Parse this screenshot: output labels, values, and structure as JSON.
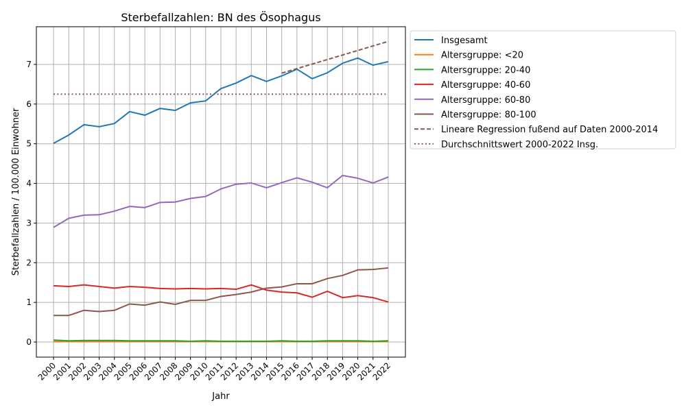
{
  "chart_data": {
    "type": "line",
    "title": "Sterbefallzahlen: BN des Ösophagus",
    "xlabel": "Jahr",
    "ylabel": "Sterbefallzahlen / 100.000 Einwohner",
    "xlim": [
      1998.87,
      2023.13
    ],
    "ylim": [
      -0.38,
      7.95
    ],
    "yticks": [
      0,
      1,
      2,
      3,
      4,
      5,
      6,
      7
    ],
    "grid": true,
    "legend_position": "outside-right-top",
    "x": [
      2000,
      2001,
      2002,
      2003,
      2004,
      2005,
      2006,
      2007,
      2008,
      2009,
      2010,
      2011,
      2012,
      2013,
      2014,
      2015,
      2016,
      2017,
      2018,
      2019,
      2020,
      2021,
      2022
    ],
    "series": [
      {
        "name": "Insgesamt",
        "color": "#1f77b4",
        "style": "solid",
        "values": [
          5.01,
          5.22,
          5.48,
          5.43,
          5.51,
          5.81,
          5.72,
          5.89,
          5.84,
          6.03,
          6.08,
          6.39,
          6.53,
          6.72,
          6.57,
          6.71,
          6.88,
          6.64,
          6.79,
          7.03,
          7.16,
          6.98,
          7.07
        ]
      },
      {
        "name": "Altersgruppe: <20",
        "color": "#ff7f0e",
        "style": "solid",
        "values": [
          0.01,
          0.01,
          0.01,
          0.01,
          0.01,
          0.01,
          0.01,
          0.01,
          0.01,
          0.01,
          0.01,
          0.01,
          0.01,
          0.01,
          0.01,
          0.01,
          0.01,
          0.01,
          0.01,
          0.01,
          0.01,
          0.01,
          0.01
        ]
      },
      {
        "name": "Altersgruppe: 20-40",
        "color": "#2ca02c",
        "style": "solid",
        "values": [
          0.05,
          0.03,
          0.04,
          0.04,
          0.04,
          0.03,
          0.03,
          0.03,
          0.03,
          0.02,
          0.03,
          0.02,
          0.02,
          0.02,
          0.02,
          0.03,
          0.02,
          0.02,
          0.03,
          0.03,
          0.03,
          0.02,
          0.03
        ]
      },
      {
        "name": "Altersgruppe: 40-60",
        "color": "#d62728",
        "style": "solid",
        "values": [
          1.42,
          1.4,
          1.44,
          1.4,
          1.36,
          1.4,
          1.38,
          1.35,
          1.34,
          1.35,
          1.34,
          1.35,
          1.33,
          1.44,
          1.31,
          1.26,
          1.24,
          1.13,
          1.28,
          1.12,
          1.17,
          1.12,
          1.01
        ]
      },
      {
        "name": "Altersgruppe: 60-80",
        "color": "#9467bd",
        "style": "solid",
        "values": [
          2.89,
          3.12,
          3.2,
          3.21,
          3.3,
          3.42,
          3.39,
          3.52,
          3.53,
          3.62,
          3.67,
          3.86,
          3.98,
          4.01,
          3.89,
          4.02,
          4.14,
          4.03,
          3.89,
          4.2,
          4.13,
          4.01,
          4.16
        ]
      },
      {
        "name": "Altersgruppe: 80-100",
        "color": "#8c564b",
        "style": "solid",
        "values": [
          0.67,
          0.67,
          0.8,
          0.77,
          0.8,
          0.96,
          0.93,
          1.01,
          0.95,
          1.05,
          1.05,
          1.15,
          1.2,
          1.26,
          1.36,
          1.39,
          1.47,
          1.47,
          1.6,
          1.68,
          1.82,
          1.83,
          1.87
        ]
      },
      {
        "name": "Lineare Regression fußend auf Daten 2000-2014",
        "color": "#8c564b",
        "style": "dashed",
        "x": [
          2015,
          2022
        ],
        "values": [
          6.78,
          7.58
        ]
      },
      {
        "name": "Durchschnittswert 2000-2022 Insg.",
        "color": "#8c564b",
        "style": "dotted",
        "x": [
          2000,
          2022
        ],
        "values": [
          6.25,
          6.25
        ]
      }
    ]
  }
}
